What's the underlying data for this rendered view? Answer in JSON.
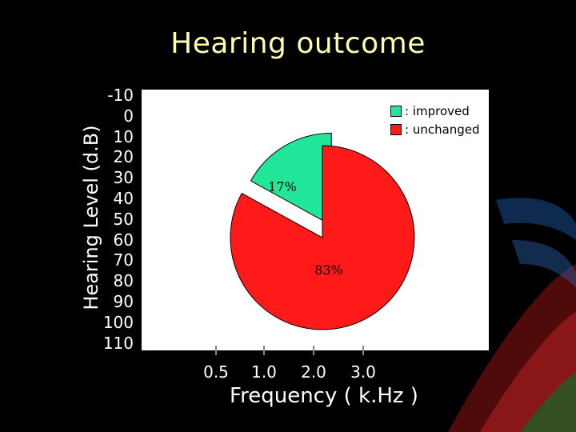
{
  "chart_data": {
    "type": "pie",
    "title": "Hearing outcome",
    "ylabel": "Hearing Level (d.B)",
    "xlabel": "Frequency ( k.Hz )",
    "yticks": [
      "-10",
      "0",
      "10",
      "20",
      "30",
      "40",
      "50",
      "60",
      "70",
      "80",
      "90",
      "100",
      "110"
    ],
    "xticks": [
      "0.5",
      "1.0",
      "2.0",
      "3.0"
    ],
    "slices": [
      {
        "name": ": improved",
        "value": 17,
        "label": "17%",
        "color": "#22e69a",
        "exploded": true
      },
      {
        "name": ": unchanged",
        "value": 83,
        "label": "83%",
        "color": "#ff1a1a",
        "exploded": false
      }
    ],
    "legend_position": "top-right"
  }
}
